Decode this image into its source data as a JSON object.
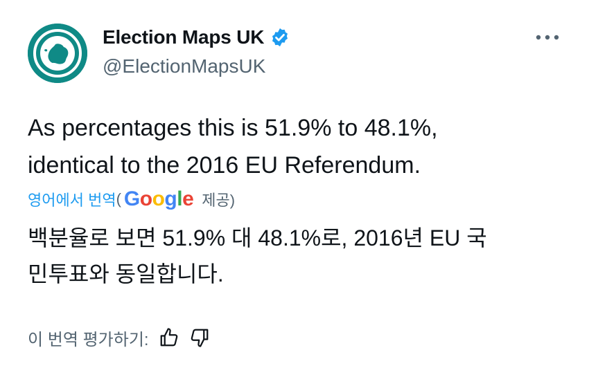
{
  "account": {
    "display_name": "Election Maps UK",
    "handle": "@ElectionMapsUK",
    "verified": true
  },
  "icons": {
    "avatar": "election-maps-uk-logo-icon",
    "verified": "verified-badge-icon",
    "more": "more-options-icon",
    "thumbs_up": "thumbs-up-icon",
    "thumbs_down": "thumbs-down-icon"
  },
  "tweet": {
    "line1": "As percentages this is 51.9% to 48.1%,",
    "line2": "identical to the 2016 EU Referendum."
  },
  "translation": {
    "link_label": "영어에서 번역",
    "open_paren": "(",
    "provider": [
      "G",
      "o",
      "o",
      "g",
      "l",
      "e"
    ],
    "provided_label": "제공)",
    "line1": "백분율로 보면 51.9% 대 48.1%로, 2016년 EU 국",
    "line2": "민투표와 동일합니다."
  },
  "rating": {
    "label": "이 번역 평가하기:"
  },
  "colors": {
    "accent": "#1d9bf0",
    "avatar_teal": "#0f8a86",
    "muted_text": "#536471"
  }
}
